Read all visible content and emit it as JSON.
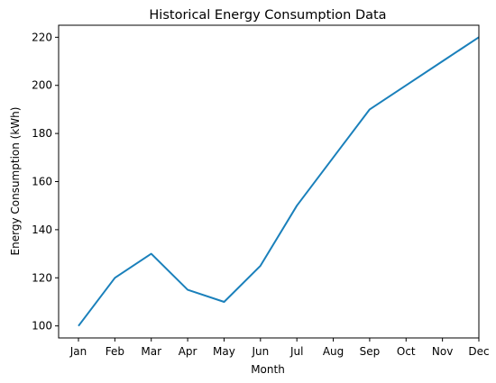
{
  "chart_data": {
    "type": "line",
    "title": "Historical Energy Consumption Data",
    "xlabel": "Month",
    "ylabel": "Energy Consumption (kWh)",
    "categories": [
      "Jan",
      "Feb",
      "Mar",
      "Apr",
      "May",
      "Jun",
      "Jul",
      "Aug",
      "Sep",
      "Oct",
      "Nov",
      "Dec"
    ],
    "series": [
      {
        "values": [
          100,
          120,
          130,
          115,
          110,
          125,
          150,
          170,
          190,
          200,
          210,
          220
        ]
      }
    ],
    "yticks": [
      100,
      120,
      140,
      160,
      180,
      200,
      220
    ],
    "ylim": [
      95,
      225
    ],
    "grid": false,
    "line_color": "#1a80bb"
  }
}
